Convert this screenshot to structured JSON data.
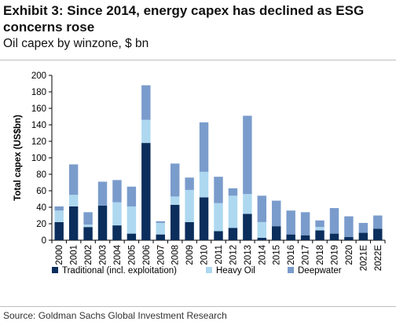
{
  "header": {
    "title": "Exhibit 3: Since 2014, energy capex has declined as ESG concerns rose",
    "subtitle": "Oil capex by winzone, $ bn"
  },
  "footer": {
    "source": "Source: Goldman Sachs Global Investment Research"
  },
  "chart_data": {
    "type": "bar",
    "stacked": true,
    "title": "",
    "xlabel": "",
    "ylabel": "Total capex (US$bn)",
    "ylim": [
      0,
      200
    ],
    "yticks": [
      0,
      20,
      40,
      60,
      80,
      100,
      120,
      140,
      160,
      180,
      200
    ],
    "grid": false,
    "legend_position": "bottom",
    "categories": [
      "2000",
      "2001",
      "2002",
      "2003",
      "2004",
      "2005",
      "2006",
      "2007",
      "2008",
      "2009",
      "2010",
      "2011",
      "2012",
      "2013",
      "2014",
      "2015",
      "2016",
      "2017",
      "2018",
      "2019",
      "2020",
      "2021E",
      "2022E"
    ],
    "series": [
      {
        "name": "Traditional (incl. exploitation)",
        "color": "#0b2e5c",
        "values": [
          22,
          41,
          16,
          42,
          18,
          8,
          118,
          7,
          43,
          22,
          52,
          11,
          15,
          32,
          3,
          17,
          7,
          6,
          12,
          8,
          4,
          9,
          14
        ]
      },
      {
        "name": "Heavy Oil",
        "color": "#add8f0",
        "values": [
          14,
          14,
          3,
          0,
          28,
          33,
          28,
          14,
          10,
          39,
          31,
          34,
          39,
          24,
          19,
          0,
          0,
          0,
          4,
          0,
          0,
          0,
          0
        ]
      },
      {
        "name": "Deepwater",
        "color": "#7a9ccc",
        "values": [
          5,
          37,
          15,
          29,
          27,
          24,
          42,
          2,
          40,
          15,
          60,
          32,
          9,
          95,
          32,
          31,
          29,
          28,
          8,
          31,
          25,
          12,
          16
        ]
      }
    ]
  }
}
